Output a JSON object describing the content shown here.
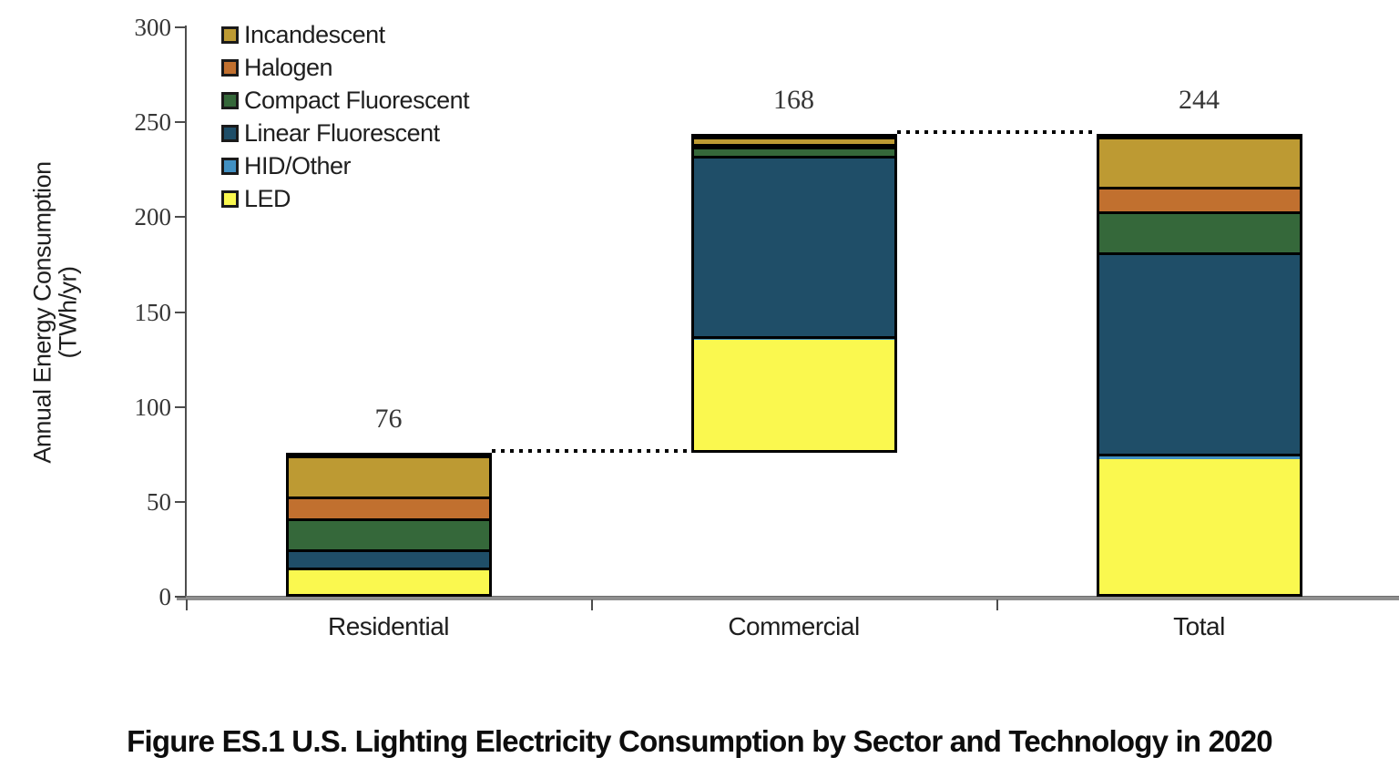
{
  "caption": "Figure ES.1 U.S. Lighting Electricity Consumption by Sector and Technology in 2020",
  "chart_data": {
    "type": "bar",
    "variant": "stacked-waterfall",
    "title": "",
    "xlabel": "",
    "ylabel_line1": "Annual Energy Consumption",
    "ylabel_line2": "(TWh/yr)",
    "ylim": [
      0,
      300
    ],
    "yticks": [
      0,
      50,
      100,
      150,
      200,
      250,
      300
    ],
    "grid": false,
    "legend_position": "top-left-inside",
    "categories": [
      "Residential",
      "Commercial",
      "Total"
    ],
    "bar_totals": [
      76,
      168,
      244
    ],
    "bar_baselines": [
      0,
      76,
      0
    ],
    "bar_total_labels": [
      "76",
      "168",
      "244"
    ],
    "connector_levels": [
      76,
      244
    ],
    "series": [
      {
        "name": "LED",
        "color": "#FAF84F",
        "values": [
          13,
          59,
          72
        ]
      },
      {
        "name": "HID/Other",
        "color": "#4190C2",
        "values": [
          1,
          2,
          3
        ]
      },
      {
        "name": "Linear Fluorescent",
        "color": "#1F4E68",
        "values": [
          10,
          97,
          107
        ]
      },
      {
        "name": "Compact Fluorescent",
        "color": "#35683A",
        "values": [
          17,
          5,
          22
        ]
      },
      {
        "name": "Halogen",
        "color": "#C1702F",
        "values": [
          12,
          1,
          13
        ]
      },
      {
        "name": "Incandescent",
        "color": "#BD9A33",
        "values": [
          23,
          4,
          27
        ]
      }
    ],
    "legend_order": [
      "Incandescent",
      "Halogen",
      "Compact Fluorescent",
      "Linear Fluorescent",
      "HID/Other",
      "LED"
    ]
  }
}
